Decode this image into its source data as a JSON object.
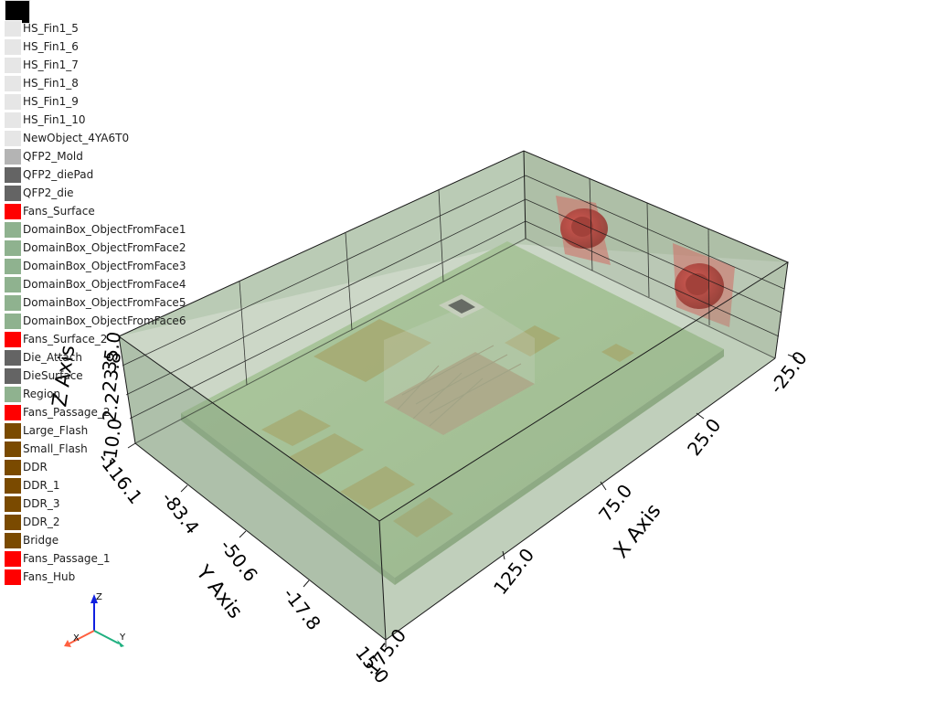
{
  "legend": {
    "top_swatch_color": "#000000",
    "items": [
      {
        "label": "HS_Fin1_5",
        "color": "#e6e6e6"
      },
      {
        "label": "HS_Fin1_6",
        "color": "#e6e6e6"
      },
      {
        "label": "HS_Fin1_7",
        "color": "#e6e6e6"
      },
      {
        "label": "HS_Fin1_8",
        "color": "#e6e6e6"
      },
      {
        "label": "HS_Fin1_9",
        "color": "#e6e6e6"
      },
      {
        "label": "HS_Fin1_10",
        "color": "#e6e6e6"
      },
      {
        "label": "NewObject_4YA6T0",
        "color": "#e6e6e6"
      },
      {
        "label": "QFP2_Mold",
        "color": "#b4b4b4"
      },
      {
        "label": "QFP2_diePad",
        "color": "#646464"
      },
      {
        "label": "QFP2_die",
        "color": "#646464"
      },
      {
        "label": "Fans_Surface",
        "color": "#ff0000"
      },
      {
        "label": "DomainBox_ObjectFromFace1",
        "color": "#8fb28f"
      },
      {
        "label": "DomainBox_ObjectFromFace2",
        "color": "#8fb28f"
      },
      {
        "label": "DomainBox_ObjectFromFace3",
        "color": "#8fb28f"
      },
      {
        "label": "DomainBox_ObjectFromFace4",
        "color": "#8fb28f"
      },
      {
        "label": "DomainBox_ObjectFromFace5",
        "color": "#8fb28f"
      },
      {
        "label": "DomainBox_ObjectFromFace6",
        "color": "#8fb28f"
      },
      {
        "label": "Fans_Surface_2",
        "color": "#ff0000"
      },
      {
        "label": "Die_Attach",
        "color": "#646464"
      },
      {
        "label": "DieSurface",
        "color": "#646464"
      },
      {
        "label": "Region",
        "color": "#8fb28f"
      },
      {
        "label": "Fans_Passage_2",
        "color": "#ff0000"
      },
      {
        "label": "Large_Flash",
        "color": "#7a4a00"
      },
      {
        "label": "Small_Flash",
        "color": "#7a4a00"
      },
      {
        "label": "DDR",
        "color": "#7a4a00"
      },
      {
        "label": "DDR_1",
        "color": "#7a4a00"
      },
      {
        "label": "DDR_3",
        "color": "#7a4a00"
      },
      {
        "label": "DDR_2",
        "color": "#7a4a00"
      },
      {
        "label": "Bridge",
        "color": "#7a4a00"
      },
      {
        "label": "Fans_Passage_1",
        "color": "#ff0000"
      },
      {
        "label": "Fans_Hub",
        "color": "#ff0000"
      }
    ]
  },
  "axes": {
    "x_title": "X Axis",
    "y_title": "Y Axis",
    "z_title": "Z Axis",
    "x_ticks": [
      "-25.0",
      "25.0",
      "75.0",
      "125.0",
      "175.0"
    ],
    "y_ticks": [
      "-116.1",
      "-83.4",
      "-50.6",
      "-17.8",
      "15.0"
    ],
    "z_ticks": [
      "-10.0",
      "2.2",
      "23.8",
      "35.0"
    ]
  },
  "orientation": {
    "x": "X",
    "y": "Y",
    "z": "Z"
  },
  "colors": {
    "domain_box": "#8fa88a",
    "board": "#8fbc7a",
    "fan": "#c8201e",
    "component": "#8a8a40",
    "x_marker": "#ff6040",
    "y_marker": "#20b080",
    "z_marker": "#1020e0"
  }
}
